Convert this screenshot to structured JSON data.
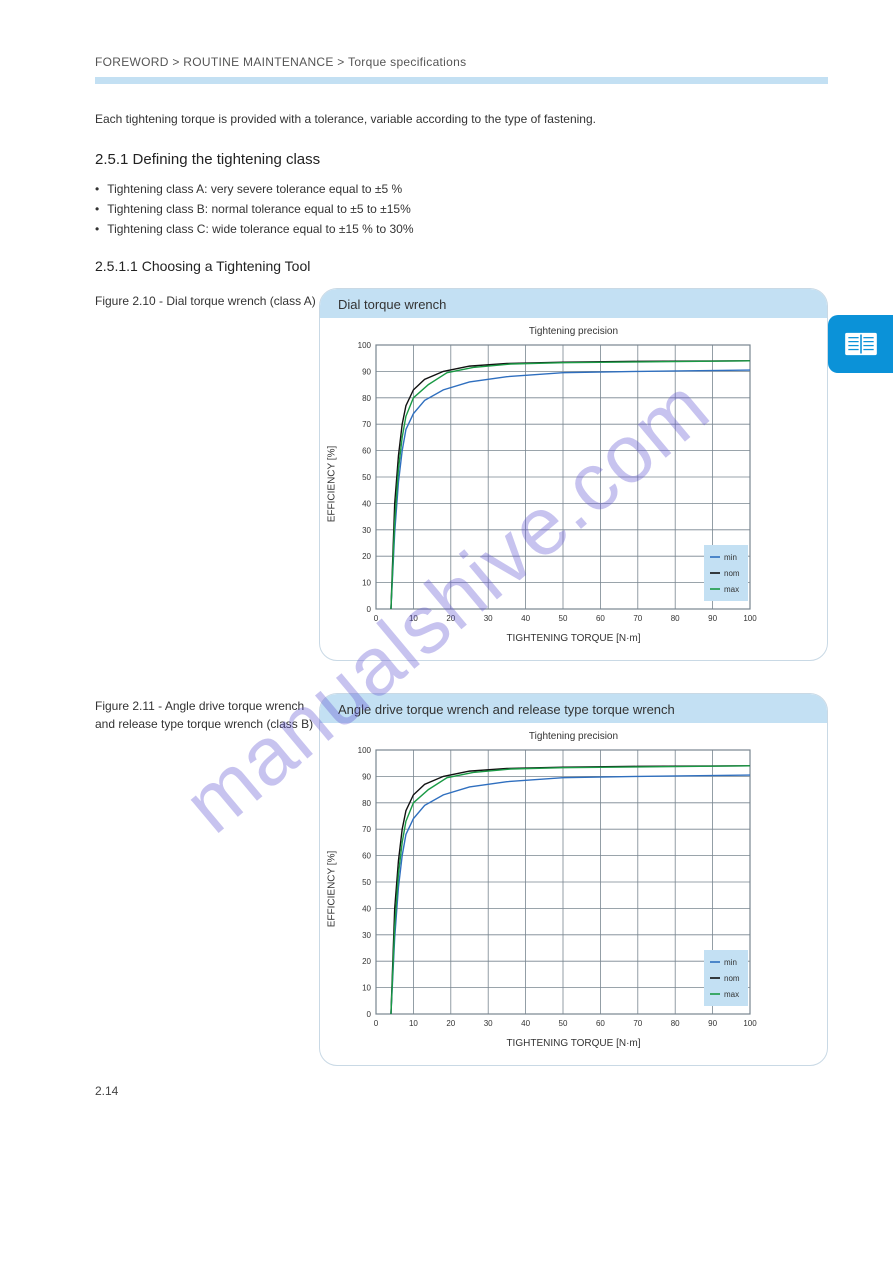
{
  "breadcrumb": "FOREWORD > ROUTINE MAINTENANCE > Torque specifications",
  "intro": "Each tightening torque is provided with a tolerance, variable according to the type of fastening.",
  "section_number": "2.5.1 Defining the tightening class",
  "bullets": [
    "Tightening class A: very severe tolerance equal to ±5 %",
    "Tightening class B: normal tolerance equal to ±5 to ±15%",
    "Tightening class C: wide tolerance equal to ±15 % to 30%"
  ],
  "tool_heading": "2.5.1.1 Choosing a Tightening Tool",
  "fig1_label": "Figure 2.10 - Dial torque wrench (class A)",
  "fig2_label": "Figure 2.11 - Angle drive torque wrench and release type torque wrench (class B)",
  "chart1": {
    "title": "Dial torque wrench",
    "top_label": "Tightening precision",
    "ylabel": "EFFICIENCY [%]",
    "xlabel": "TIGHTENING TORQUE [N·m]",
    "xlim": [
      0,
      100
    ],
    "ylim": [
      0,
      100
    ],
    "xtick_step": 10,
    "ytick_step": 10,
    "background_color": "#ffffff",
    "grid_color": "#78858f",
    "legend_items": [
      {
        "label": "min",
        "color": "#2f6fbf"
      },
      {
        "label": "nom",
        "color": "#111111"
      },
      {
        "label": "max",
        "color": "#1a9a45"
      }
    ],
    "series": [
      {
        "name": "min",
        "color": "#2f6fbf",
        "width": 1.4,
        "points": [
          [
            4,
            0
          ],
          [
            5,
            29
          ],
          [
            6,
            48
          ],
          [
            7,
            60
          ],
          [
            8,
            68
          ],
          [
            10,
            74
          ],
          [
            13,
            79
          ],
          [
            18,
            83
          ],
          [
            25,
            86
          ],
          [
            35,
            88
          ],
          [
            50,
            89.5
          ],
          [
            70,
            90
          ],
          [
            100,
            90.5
          ]
        ]
      },
      {
        "name": "nom",
        "color": "#111111",
        "width": 1.4,
        "points": [
          [
            4,
            0
          ],
          [
            5,
            40
          ],
          [
            6,
            58
          ],
          [
            7,
            70
          ],
          [
            8,
            77
          ],
          [
            10,
            83
          ],
          [
            13,
            87
          ],
          [
            18,
            90
          ],
          [
            25,
            92
          ],
          [
            35,
            93
          ],
          [
            50,
            93.5
          ],
          [
            70,
            93.8
          ],
          [
            100,
            94
          ]
        ]
      },
      {
        "name": "max",
        "color": "#1a9a45",
        "width": 1.4,
        "points": [
          [
            4,
            0
          ],
          [
            5,
            33
          ],
          [
            6,
            53
          ],
          [
            7,
            65
          ],
          [
            8,
            73
          ],
          [
            10,
            80
          ],
          [
            14,
            85
          ],
          [
            19,
            89.5
          ],
          [
            26,
            91.5
          ],
          [
            36,
            92.8
          ],
          [
            50,
            93.3
          ],
          [
            70,
            93.6
          ],
          [
            100,
            94
          ]
        ]
      }
    ]
  },
  "chart2": {
    "title": "Angle drive torque wrench and release type torque wrench",
    "top_label": "Tightening precision",
    "ylabel": "EFFICIENCY [%]",
    "xlabel": "TIGHTENING TORQUE [N·m]",
    "xlim": [
      0,
      100
    ],
    "ylim": [
      0,
      100
    ],
    "xtick_step": 10,
    "ytick_step": 10,
    "background_color": "#ffffff",
    "grid_color": "#78858f",
    "legend_items": [
      {
        "label": "min",
        "color": "#2f6fbf"
      },
      {
        "label": "nom",
        "color": "#111111"
      },
      {
        "label": "max",
        "color": "#1a9a45"
      }
    ],
    "series": [
      {
        "name": "min",
        "color": "#2f6fbf",
        "width": 1.4,
        "points": [
          [
            4,
            0
          ],
          [
            5,
            29
          ],
          [
            6,
            48
          ],
          [
            7,
            60
          ],
          [
            8,
            68
          ],
          [
            10,
            74
          ],
          [
            13,
            79
          ],
          [
            18,
            83
          ],
          [
            25,
            86
          ],
          [
            35,
            88
          ],
          [
            50,
            89.5
          ],
          [
            70,
            90
          ],
          [
            100,
            90.5
          ]
        ]
      },
      {
        "name": "nom",
        "color": "#111111",
        "width": 1.4,
        "points": [
          [
            4,
            0
          ],
          [
            5,
            40
          ],
          [
            6,
            58
          ],
          [
            7,
            70
          ],
          [
            8,
            77
          ],
          [
            10,
            83
          ],
          [
            13,
            87
          ],
          [
            18,
            90
          ],
          [
            25,
            92
          ],
          [
            35,
            93
          ],
          [
            50,
            93.5
          ],
          [
            70,
            93.8
          ],
          [
            100,
            94
          ]
        ]
      },
      {
        "name": "max",
        "color": "#1a9a45",
        "width": 1.4,
        "points": [
          [
            4,
            0
          ],
          [
            5,
            33
          ],
          [
            6,
            53
          ],
          [
            7,
            65
          ],
          [
            8,
            73
          ],
          [
            10,
            80
          ],
          [
            14,
            85
          ],
          [
            19,
            89.5
          ],
          [
            26,
            91.5
          ],
          [
            36,
            92.8
          ],
          [
            50,
            93.3
          ],
          [
            70,
            93.6
          ],
          [
            100,
            94
          ]
        ]
      }
    ]
  },
  "footer": "2.14",
  "watermark": "manualshive.com"
}
